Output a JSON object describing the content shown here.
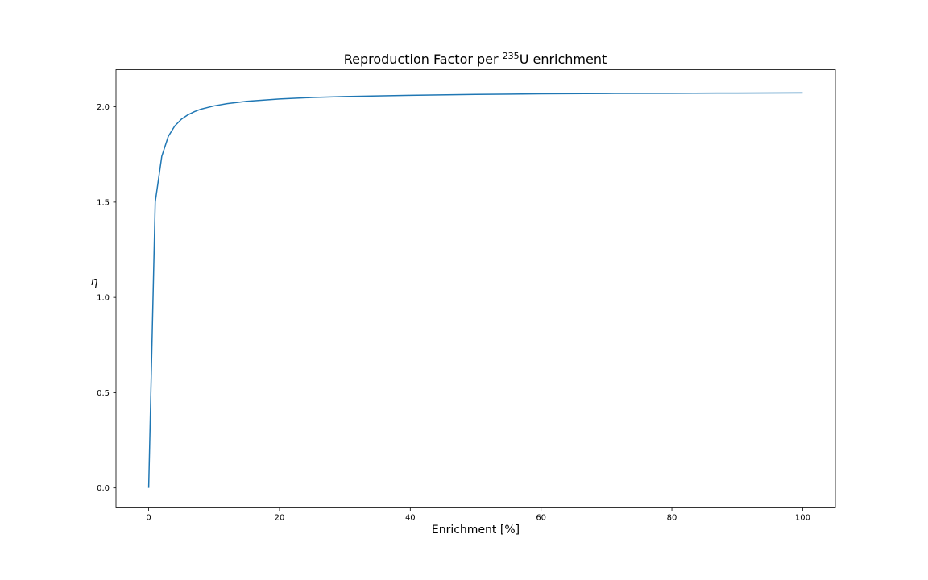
{
  "chart_data": {
    "type": "line",
    "title": {
      "prefix": "Reproduction Factor per ",
      "superscript": "235",
      "suffix": "U enrichment"
    },
    "xlabel": "Enrichment [%]",
    "ylabel": "η",
    "xlim": [
      -5,
      105
    ],
    "ylim": [
      -0.105,
      2.195
    ],
    "x_ticks": [
      0,
      20,
      40,
      60,
      80,
      100
    ],
    "x_tick_labels": [
      "0",
      "20",
      "40",
      "60",
      "80",
      "100"
    ],
    "y_ticks": [
      0.0,
      0.5,
      1.0,
      1.5,
      2.0
    ],
    "y_tick_labels": [
      "0.0",
      "0.5",
      "1.0",
      "1.5",
      "2.0"
    ],
    "grid": false,
    "series": [
      {
        "color": "#1f77b4",
        "x": [
          0,
          1,
          2,
          3,
          4,
          5,
          6,
          7,
          8,
          10,
          12,
          15,
          20,
          25,
          30,
          40,
          50,
          60,
          70,
          80,
          90,
          100
        ],
        "y": [
          0.0,
          1.5,
          1.74,
          1.845,
          1.9,
          1.935,
          1.958,
          1.975,
          1.988,
          2.005,
          2.017,
          2.029,
          2.041,
          2.049,
          2.054,
          2.06,
          2.065,
          2.068,
          2.07,
          2.071,
          2.072,
          2.073
        ]
      }
    ]
  }
}
